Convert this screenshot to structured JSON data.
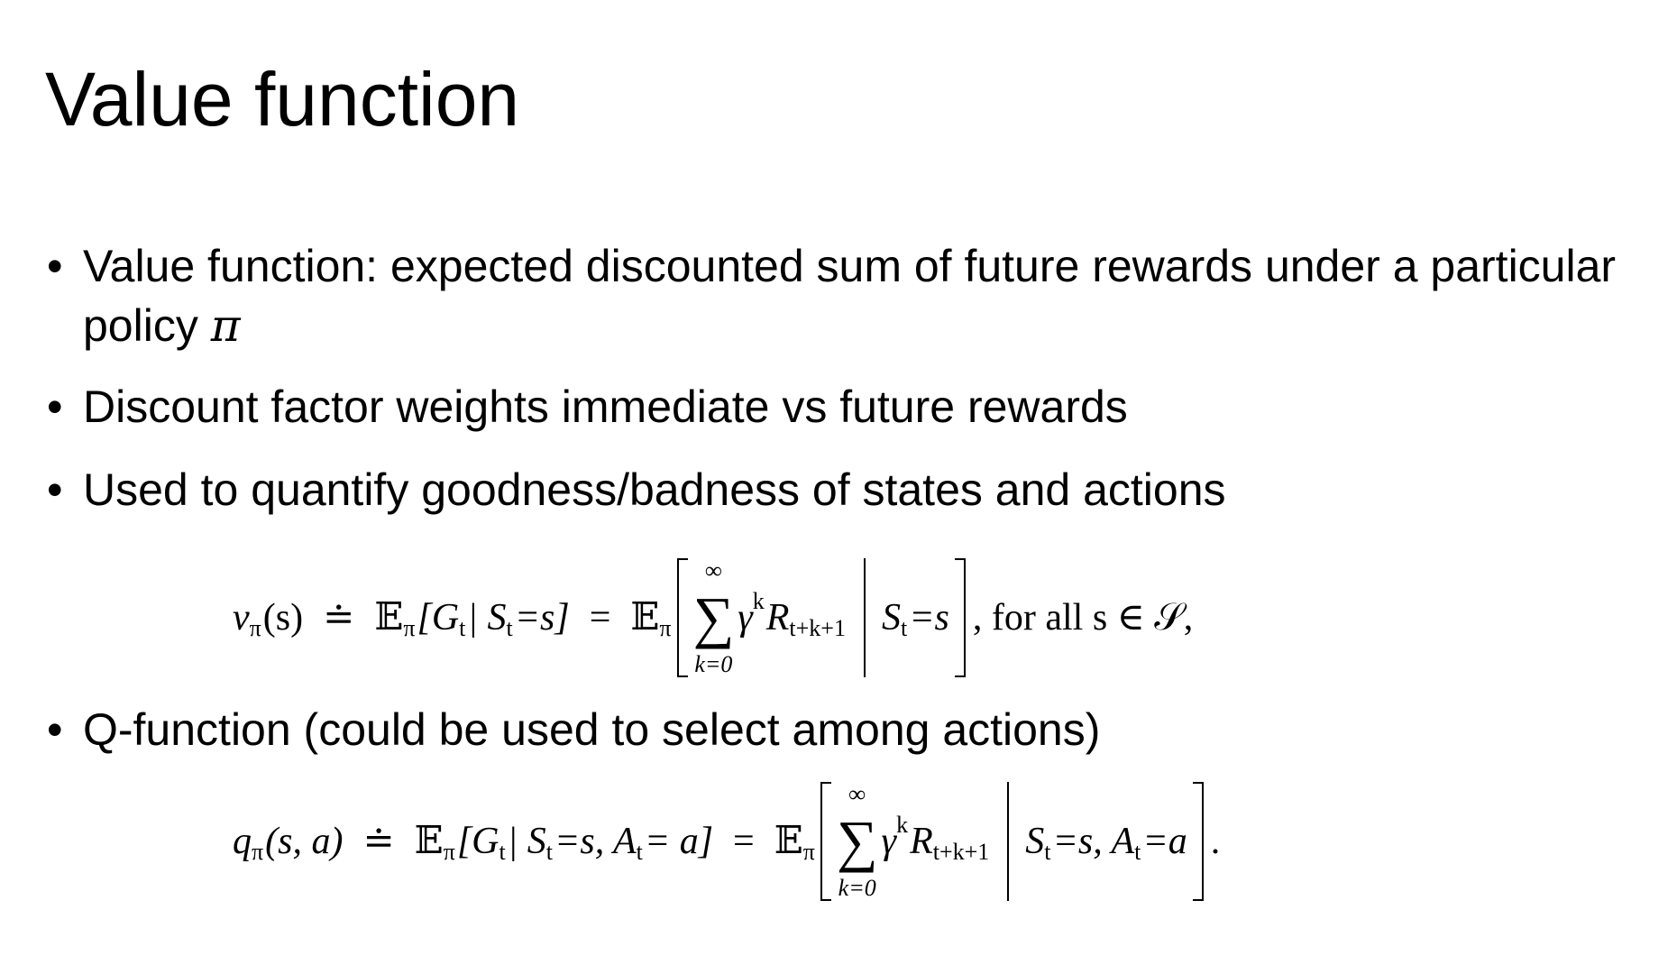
{
  "slide": {
    "title": "Value function",
    "bullets": [
      {
        "text": "Value function: expected discounted sum of future rewards under a particular policy ",
        "symbol": "π"
      },
      {
        "text": "Discount factor weights immediate vs future rewards"
      },
      {
        "text": "Used to quantify goodness/badness of states and actions"
      },
      {
        "text": "Q-function (could be used to select among actions)"
      }
    ],
    "bullet_glyph": "•",
    "equation_v": {
      "lhs": "v",
      "lhs_sub": "π",
      "lhs_args": "(s)",
      "defeq": "≐",
      "mid": "𝔼",
      "mid_sub": "π",
      "mid_body": "[G",
      "mid_body_sub": "t",
      "mid_body_rest": " | S",
      "mid_cond_sub": "t",
      "mid_cond_rest": "=s]",
      "eq": "=",
      "exp": "𝔼",
      "exp_sub": "π",
      "sum_top": "∞",
      "sum_sigma": "∑",
      "sum_bottom": "k=0",
      "gamma": "γ",
      "gamma_sup": "k",
      "reward": "R",
      "reward_sub": "t+k+1",
      "cond": "S",
      "cond_sub": "t",
      "cond_rest": "=s",
      "tail": ",  for all s ∈ 𝒮,"
    },
    "equation_q": {
      "lhs": "q",
      "lhs_sub": "π",
      "lhs_args": "(s, a)",
      "defeq": "≐",
      "mid": "𝔼",
      "mid_sub": "π",
      "mid_body": "[G",
      "mid_body_sub": "t",
      "mid_body_rest": " | S",
      "mid_cond_sub": "t",
      "mid_cond_rest": "=s, A",
      "mid_cond_sub2": "t",
      "mid_cond_rest2": " = a]",
      "eq": "=",
      "exp": "𝔼",
      "exp_sub": "π",
      "sum_top": "∞",
      "sum_sigma": "∑",
      "sum_bottom": "k=0",
      "gamma": "γ",
      "gamma_sup": "k",
      "reward": "R",
      "reward_sub": "t+k+1",
      "cond": "S",
      "cond_sub": "t",
      "cond_rest": "=s, A",
      "cond_sub2": "t",
      "cond_rest2": "=a",
      "tail": "."
    }
  }
}
